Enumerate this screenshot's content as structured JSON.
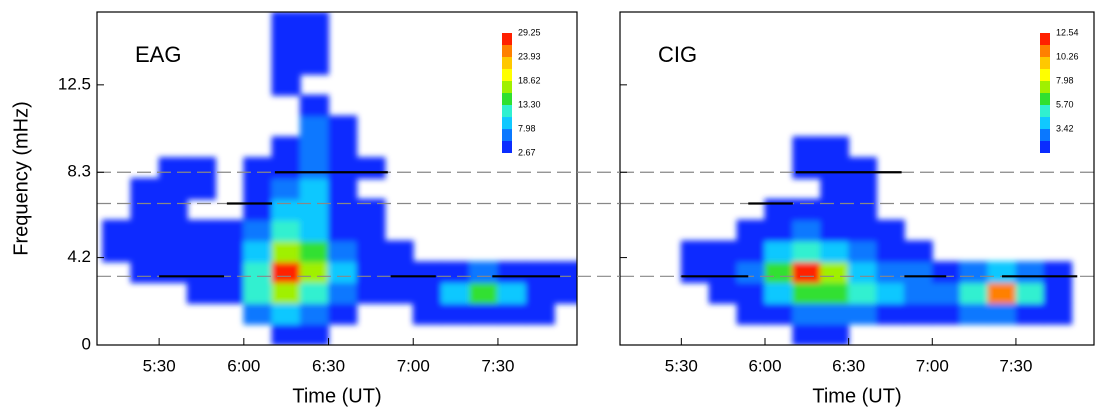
{
  "chart_data": [
    {
      "type": "contour",
      "label": "EAG",
      "xlabel": "Time  (UT)",
      "ylabel": "Frequency  (mHz)",
      "xlim": [
        308,
        478
      ],
      "ylim": [
        0,
        16
      ],
      "xticks": [
        {
          "value": 330,
          "label": "5:30"
        },
        {
          "value": 360,
          "label": "6:00"
        },
        {
          "value": 390,
          "label": "6:30"
        },
        {
          "value": 420,
          "label": "7:00"
        },
        {
          "value": 450,
          "label": "7:30"
        }
      ],
      "yticks": [
        0,
        4.2,
        8.3,
        12.5
      ],
      "x": [
        315,
        325,
        335,
        345,
        355,
        365,
        375,
        385,
        395,
        405,
        415,
        425,
        435,
        445,
        455,
        465,
        475
      ],
      "y": [
        0.5,
        1.5,
        2.5,
        3.5,
        4.5,
        5.5,
        6.5,
        7.5,
        8.5,
        9.5,
        10.5,
        11.5,
        12.5,
        13.5,
        14.5,
        15.5
      ],
      "z": [
        [
          0,
          0,
          0,
          0,
          0,
          0,
          3,
          3,
          0,
          0,
          0,
          0,
          0,
          0,
          0,
          0,
          0
        ],
        [
          0,
          0,
          0,
          0,
          0,
          6,
          8,
          7,
          4,
          0,
          0,
          3,
          4,
          5,
          4,
          3,
          0
        ],
        [
          0,
          0,
          0,
          3,
          3,
          11,
          16,
          12,
          6,
          3,
          3,
          5,
          8,
          15,
          9,
          5,
          3
        ],
        [
          0,
          3,
          4,
          4,
          3,
          13,
          28,
          18,
          8,
          4,
          3,
          4,
          5,
          6,
          5,
          4,
          3
        ],
        [
          3,
          3,
          4,
          3,
          3,
          10,
          17,
          14,
          6,
          3,
          3,
          0,
          0,
          0,
          0,
          0,
          0
        ],
        [
          3,
          4,
          3,
          3,
          3,
          7,
          12,
          10,
          5,
          3,
          0,
          0,
          0,
          0,
          0,
          0,
          0
        ],
        [
          0,
          3,
          3,
          0,
          0,
          5,
          9,
          8,
          4,
          3,
          0,
          0,
          0,
          0,
          0,
          0,
          0
        ],
        [
          0,
          3,
          4,
          3,
          0,
          4,
          7,
          8,
          5,
          0,
          0,
          0,
          0,
          0,
          0,
          0,
          0
        ],
        [
          0,
          0,
          3,
          3,
          0,
          3,
          5,
          7,
          5,
          3,
          0,
          0,
          0,
          0,
          0,
          0,
          0
        ],
        [
          0,
          0,
          0,
          0,
          0,
          0,
          4,
          6,
          4,
          0,
          0,
          0,
          0,
          0,
          0,
          0,
          0
        ],
        [
          0,
          0,
          0,
          0,
          0,
          0,
          0,
          6,
          4,
          0,
          0,
          0,
          0,
          0,
          0,
          0,
          0
        ],
        [
          0,
          0,
          0,
          0,
          0,
          0,
          0,
          3,
          0,
          0,
          0,
          0,
          0,
          0,
          0,
          0,
          0
        ],
        [
          0,
          0,
          0,
          0,
          0,
          0,
          3,
          0,
          0,
          0,
          0,
          0,
          0,
          0,
          0,
          0,
          0
        ],
        [
          0,
          0,
          0,
          0,
          0,
          0,
          4,
          4,
          0,
          0,
          0,
          0,
          0,
          0,
          0,
          0,
          0
        ],
        [
          0,
          0,
          0,
          0,
          0,
          0,
          4,
          4,
          0,
          0,
          0,
          0,
          0,
          0,
          0,
          0,
          0
        ],
        [
          0,
          0,
          0,
          0,
          0,
          0,
          4,
          4,
          0,
          0,
          0,
          0,
          0,
          0,
          0,
          0,
          0
        ]
      ],
      "levels": [
        2.67,
        5.33,
        7.98,
        10.64,
        13.3,
        15.96,
        18.62,
        21.28,
        23.93,
        26.59,
        29.25
      ],
      "colors": [
        "#0a2cff",
        "#0a78ff",
        "#10c8ff",
        "#30f0d0",
        "#30e030",
        "#a0f000",
        "#ffff00",
        "#ffc800",
        "#ff8000",
        "#ff2000"
      ],
      "colorbar_ticks": [
        2.67,
        7.98,
        {
          "value": 13.3,
          "label": "13.30"
        },
        18.62,
        23.93,
        29.25
      ],
      "reference_lines": [
        3.3,
        6.8,
        8.3
      ],
      "segments": [
        {
          "x": [
            330,
            353
          ],
          "y": 3.3
        },
        {
          "x": [
            354,
            370
          ],
          "y": 6.8
        },
        {
          "x": [
            371,
            411
          ],
          "y": 8.3
        },
        {
          "x": [
            412,
            428
          ],
          "y": 3.3
        },
        {
          "x": [
            448,
            472
          ],
          "y": 3.3
        }
      ]
    },
    {
      "type": "contour",
      "label": "CIG",
      "xlabel": "Time  (UT)",
      "xlim": [
        308,
        478
      ],
      "ylim": [
        0,
        16
      ],
      "xticks": [
        {
          "value": 330,
          "label": "5:30"
        },
        {
          "value": 360,
          "label": "6:00"
        },
        {
          "value": 390,
          "label": "6:30"
        },
        {
          "value": 420,
          "label": "7:00"
        },
        {
          "value": 450,
          "label": "7:30"
        }
      ],
      "yticks": [
        0,
        4.2,
        8.3,
        12.5
      ],
      "x": [
        315,
        325,
        335,
        345,
        355,
        365,
        375,
        385,
        395,
        405,
        415,
        425,
        435,
        445,
        455,
        465,
        475
      ],
      "y": [
        0.5,
        1.5,
        2.5,
        3.5,
        4.5,
        5.5,
        6.5,
        7.5,
        8.5,
        9.5,
        10.5,
        11.5,
        12.5,
        13.5,
        14.5,
        15.5
      ],
      "z": [
        [
          0,
          0,
          0,
          0,
          0,
          0,
          1.5,
          1.5,
          0,
          0,
          0,
          0,
          0,
          0,
          0,
          0,
          0
        ],
        [
          0,
          0,
          0,
          0,
          1.5,
          2,
          3,
          3,
          2.5,
          2,
          2,
          2,
          3,
          3,
          2,
          1.5,
          0
        ],
        [
          0,
          0,
          0,
          1.5,
          2,
          4,
          6,
          6,
          5,
          4,
          3,
          3,
          5,
          11,
          5,
          2,
          0
        ],
        [
          0,
          0,
          1.5,
          2,
          3,
          6,
          12,
          7,
          4,
          3,
          2.5,
          2,
          3,
          4,
          3,
          1.5,
          0
        ],
        [
          0,
          0,
          1.5,
          1.5,
          2,
          4,
          5,
          4,
          2.5,
          2,
          1.5,
          0,
          0,
          0,
          0,
          0,
          0
        ],
        [
          0,
          0,
          0,
          0,
          1.5,
          2,
          3,
          2,
          1.5,
          1.5,
          0,
          0,
          0,
          0,
          0,
          0,
          0
        ],
        [
          0,
          0,
          0,
          0,
          0,
          1.5,
          2,
          1.5,
          1.5,
          0,
          0,
          0,
          0,
          0,
          0,
          0,
          0
        ],
        [
          0,
          0,
          0,
          0,
          0,
          0,
          0,
          1.5,
          1.5,
          0,
          0,
          0,
          0,
          0,
          0,
          0,
          0
        ],
        [
          0,
          0,
          0,
          0,
          0,
          0,
          1.5,
          2,
          1.5,
          0,
          0,
          0,
          0,
          0,
          0,
          0,
          0
        ],
        [
          0,
          0,
          0,
          0,
          0,
          0,
          1.5,
          1.5,
          0,
          0,
          0,
          0,
          0,
          0,
          0,
          0,
          0
        ],
        [
          0,
          0,
          0,
          0,
          0,
          0,
          0,
          0,
          0,
          0,
          0,
          0,
          0,
          0,
          0,
          0,
          0
        ],
        [
          0,
          0,
          0,
          0,
          0,
          0,
          0,
          0,
          0,
          0,
          0,
          0,
          0,
          0,
          0,
          0,
          0
        ],
        [
          0,
          0,
          0,
          0,
          0,
          0,
          0,
          0,
          0,
          0,
          0,
          0,
          0,
          0,
          0,
          0,
          0
        ],
        [
          0,
          0,
          0,
          0,
          0,
          0,
          0,
          0,
          0,
          0,
          0,
          0,
          0,
          0,
          0,
          0,
          0
        ],
        [
          0,
          0,
          0,
          0,
          0,
          0,
          0,
          0,
          0,
          0,
          0,
          0,
          0,
          0,
          0,
          0,
          0
        ],
        [
          0,
          0,
          0,
          0,
          0,
          0,
          0,
          0,
          0,
          0,
          0,
          0,
          0,
          0,
          0,
          0,
          0
        ]
      ],
      "levels": [
        1.14,
        2.28,
        3.42,
        4.56,
        5.7,
        6.84,
        7.98,
        9.12,
        10.26,
        11.4,
        12.54
      ],
      "colors": [
        "#0a2cff",
        "#0a78ff",
        "#10c8ff",
        "#30f0d0",
        "#30e030",
        "#a0f000",
        "#ffff00",
        "#ffc800",
        "#ff8000",
        "#ff2000"
      ],
      "colorbar_ticks": [
        3.42,
        {
          "value": 5.7,
          "label": "5.70"
        },
        7.98,
        10.26,
        12.54
      ],
      "reference_lines": [
        3.3,
        6.8,
        8.3
      ],
      "segments": [
        {
          "x": [
            330,
            354
          ],
          "y": 3.3
        },
        {
          "x": [
            354,
            370
          ],
          "y": 6.8
        },
        {
          "x": [
            371,
            409
          ],
          "y": 8.3
        },
        {
          "x": [
            410,
            425
          ],
          "y": 3.3
        },
        {
          "x": [
            445,
            472
          ],
          "y": 3.3
        }
      ]
    }
  ]
}
